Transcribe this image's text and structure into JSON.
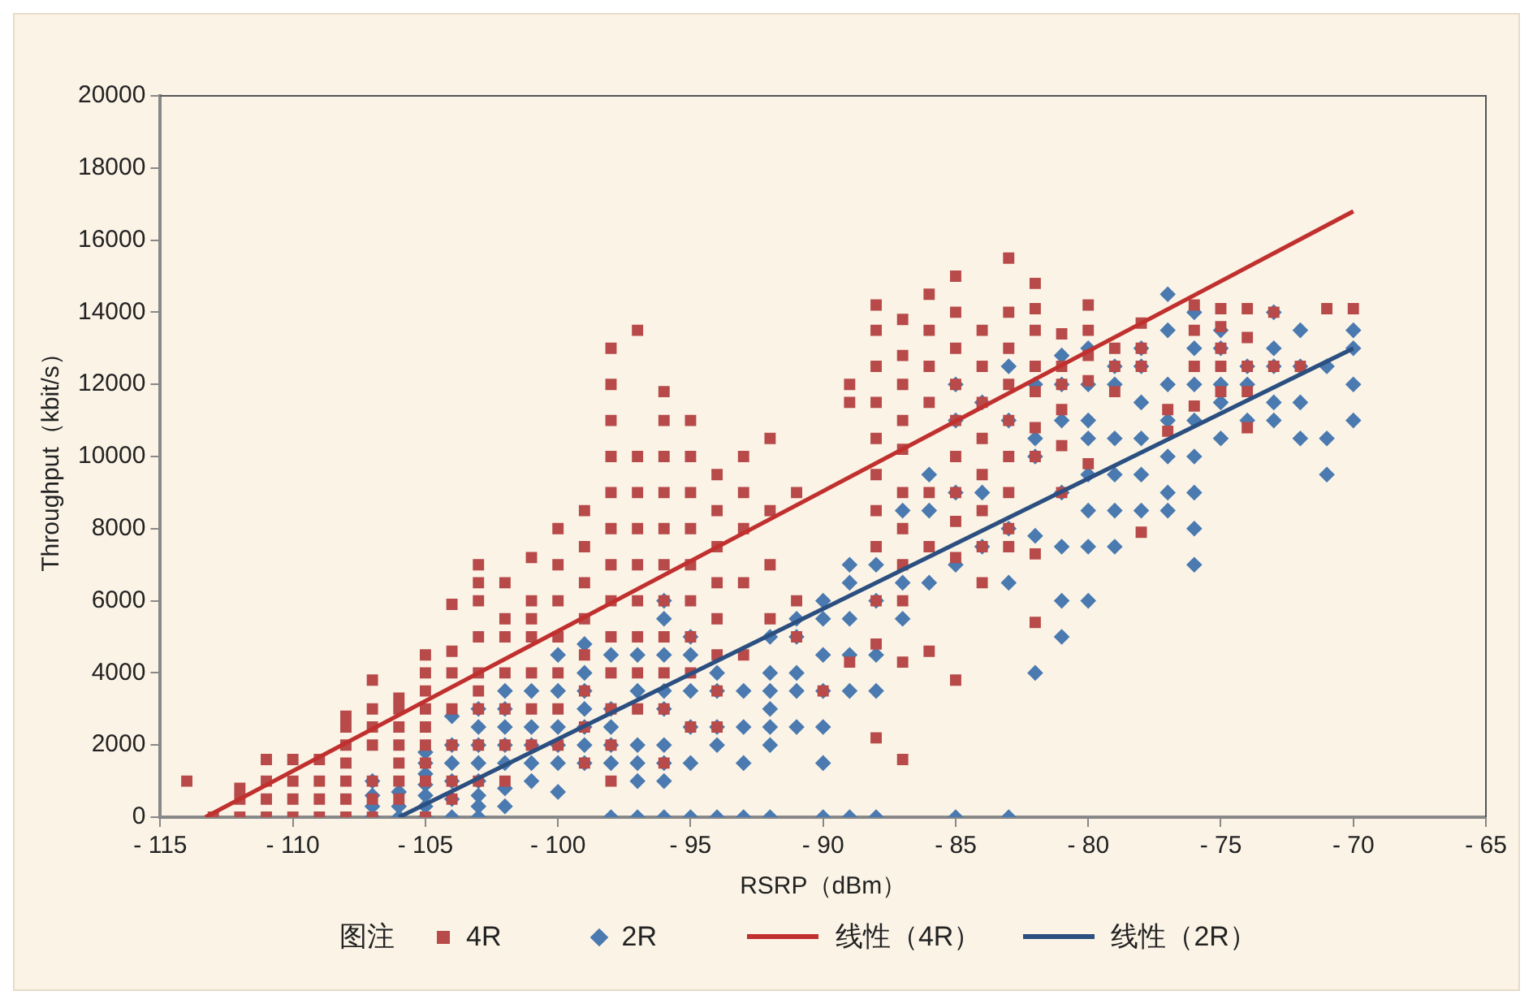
{
  "chart_data": {
    "type": "scatter",
    "xlabel": "RSRP（dBm）",
    "ylabel": "Throughput（kbit/s）",
    "legend_title": "图注",
    "legend": "bottom",
    "grid": false,
    "xlim": [
      -115,
      -65
    ],
    "xticks": [
      {
        "value": -115,
        "label": "- 115"
      },
      {
        "value": -110,
        "label": "- 110"
      },
      {
        "value": -105,
        "label": "- 105"
      },
      {
        "value": -100,
        "label": "- 100"
      },
      {
        "value": -95,
        "label": "- 95"
      },
      {
        "value": -90,
        "label": "- 90"
      },
      {
        "value": -85,
        "label": "- 85"
      },
      {
        "value": -80,
        "label": "- 80"
      },
      {
        "value": -75,
        "label": "- 75"
      },
      {
        "value": -70,
        "label": "- 70"
      },
      {
        "value": -65,
        "label": "- 65"
      }
    ],
    "ylim": [
      0,
      20000
    ],
    "yticks": [
      0,
      2000,
      4000,
      6000,
      8000,
      10000,
      12000,
      14000,
      16000,
      18000,
      20000
    ],
    "series": [
      {
        "name": "4R",
        "type": "scatter",
        "marker": "square",
        "color": "#b84a4a",
        "x": [
          -114,
          -113,
          -112,
          -112,
          -112,
          -111,
          -111,
          -111,
          -111,
          -110,
          -110,
          -110,
          -110,
          -109,
          -109,
          -109,
          -109,
          -108,
          -108,
          -108,
          -108,
          -108,
          -108,
          -108,
          -107,
          -107,
          -107,
          -107,
          -107,
          -107,
          -107,
          -106,
          -106,
          -106,
          -106,
          -106,
          -106,
          -106,
          -105,
          -105,
          -105,
          -105,
          -105,
          -105,
          -105,
          -105,
          -105,
          -104,
          -104,
          -104,
          -104,
          -104,
          -104,
          -104,
          -103,
          -103,
          -103,
          -103,
          -103,
          -103,
          -103,
          -103,
          -103,
          -102,
          -102,
          -102,
          -102,
          -102,
          -102,
          -102,
          -101,
          -101,
          -101,
          -101,
          -101,
          -101,
          -101,
          -100,
          -100,
          -100,
          -100,
          -100,
          -100,
          -100,
          -99,
          -99,
          -99,
          -99,
          -99,
          -99,
          -99,
          -99,
          -98,
          -98,
          -98,
          -98,
          -98,
          -98,
          -98,
          -98,
          -98,
          -98,
          -98,
          -98,
          -98,
          -97,
          -97,
          -97,
          -97,
          -97,
          -97,
          -97,
          -97,
          -97,
          -96,
          -96,
          -96,
          -96,
          -96,
          -96,
          -96,
          -96,
          -96,
          -96,
          -96,
          -95,
          -95,
          -95,
          -95,
          -95,
          -95,
          -95,
          -95,
          -95,
          -94,
          -94,
          -94,
          -94,
          -94,
          -94,
          -94,
          -94,
          -93,
          -93,
          -93,
          -93,
          -93,
          -92,
          -92,
          -92,
          -92,
          -91,
          -91,
          -91,
          -90,
          -89,
          -89,
          -89,
          -88,
          -88,
          -88,
          -88,
          -88,
          -88,
          -88,
          -88,
          -88,
          -88,
          -88,
          -87,
          -87,
          -87,
          -87,
          -87,
          -87,
          -87,
          -87,
          -87,
          -87,
          -87,
          -86,
          -86,
          -86,
          -86,
          -86,
          -86,
          -86,
          -85,
          -85,
          -85,
          -85,
          -85,
          -85,
          -85,
          -85,
          -85,
          -85,
          -84,
          -84,
          -84,
          -84,
          -84,
          -84,
          -84,
          -84,
          -83,
          -83,
          -83,
          -83,
          -83,
          -83,
          -83,
          -83,
          -83,
          -82,
          -82,
          -82,
          -82,
          -82,
          -82,
          -82,
          -82,
          -82,
          -81,
          -81,
          -81,
          -81,
          -81,
          -81,
          -80,
          -80,
          -80,
          -80,
          -80,
          -79,
          -79,
          -79,
          -78,
          -78,
          -78,
          -78,
          -77,
          -77,
          -76,
          -76,
          -76,
          -76,
          -75,
          -75,
          -75,
          -75,
          -75,
          -74,
          -74,
          -74,
          -74,
          -74,
          -73,
          -73,
          -72,
          -71,
          -70
        ],
        "values": [
          1000,
          0,
          0,
          500,
          800,
          0,
          500,
          1000,
          1600,
          0,
          500,
          1000,
          1600,
          0,
          500,
          1000,
          1600,
          0,
          500,
          1000,
          1500,
          2000,
          2500,
          2800,
          0,
          500,
          1000,
          2000,
          2500,
          3000,
          3800,
          500,
          1000,
          1500,
          2000,
          2500,
          3000,
          3300,
          0,
          1000,
          1500,
          2000,
          2500,
          3000,
          3500,
          4000,
          4500,
          500,
          1000,
          2000,
          3000,
          4000,
          4600,
          5900,
          1000,
          2000,
          3000,
          3500,
          4000,
          5000,
          6000,
          6500,
          7000,
          1000,
          2000,
          3000,
          4000,
          5000,
          5500,
          6500,
          2000,
          3000,
          4000,
          5000,
          5500,
          6000,
          7200,
          2000,
          3000,
          4000,
          5000,
          6000,
          7000,
          8000,
          1500,
          2500,
          3500,
          4500,
          5500,
          6500,
          7500,
          8500,
          1000,
          2000,
          3000,
          4000,
          5000,
          6000,
          7000,
          8000,
          9000,
          10000,
          11000,
          12000,
          13000,
          3000,
          4000,
          5000,
          6000,
          7000,
          8000,
          9000,
          10000,
          13500,
          1500,
          3000,
          4000,
          5000,
          6000,
          7000,
          8000,
          9000,
          10000,
          11000,
          11800,
          2500,
          4000,
          5000,
          6000,
          7000,
          8000,
          9000,
          10000,
          11000,
          2500,
          3500,
          4500,
          5500,
          6500,
          7500,
          8500,
          9500,
          4500,
          6500,
          8000,
          9000,
          10000,
          5500,
          7000,
          8500,
          10500,
          5000,
          6000,
          9000,
          3500,
          4300,
          11500,
          12000,
          2200,
          4800,
          6000,
          7500,
          8500,
          9500,
          10500,
          11500,
          12500,
          13500,
          14200,
          1600,
          4300,
          6000,
          7000,
          8000,
          9000,
          10200,
          11000,
          12000,
          12800,
          13800,
          4600,
          7500,
          9000,
          11500,
          12500,
          13500,
          14500,
          3800,
          7200,
          8200,
          9000,
          10000,
          11000,
          12000,
          13000,
          14000,
          15000,
          6500,
          7500,
          8500,
          9500,
          10500,
          11500,
          12500,
          13500,
          7500,
          8000,
          9000,
          10000,
          11000,
          12000,
          13000,
          14000,
          15500,
          5400,
          7300,
          10000,
          10800,
          11800,
          12500,
          13500,
          14100,
          14800,
          9000,
          10300,
          11300,
          12000,
          12500,
          13400,
          9800,
          12100,
          12800,
          13500,
          14200,
          11800,
          12500,
          13000,
          7900,
          12500,
          13000,
          13700,
          10700,
          11300,
          11400,
          12500,
          13500,
          14200,
          11800,
          12500,
          13000,
          13600,
          14100,
          10800,
          11800,
          12500,
          13300,
          14100,
          12500,
          14000,
          12500,
          14100,
          14100
        ]
      },
      {
        "name": "2R",
        "type": "scatter",
        "marker": "diamond",
        "color": "#4a7ab0",
        "x": [
          -107,
          -107,
          -107,
          -107,
          -106,
          -106,
          -106,
          -105,
          -105,
          -105,
          -105,
          -105,
          -105,
          -105,
          -104,
          -104,
          -104,
          -104,
          -104,
          -104,
          -103,
          -103,
          -103,
          -103,
          -103,
          -103,
          -103,
          -103,
          -102,
          -102,
          -102,
          -102,
          -102,
          -102,
          -102,
          -101,
          -101,
          -101,
          -101,
          -101,
          -100,
          -100,
          -100,
          -100,
          -100,
          -100,
          -99,
          -99,
          -99,
          -99,
          -99,
          -99,
          -99,
          -98,
          -98,
          -98,
          -98,
          -98,
          -98,
          -97,
          -97,
          -97,
          -97,
          -97,
          -97,
          -96,
          -96,
          -96,
          -96,
          -96,
          -96,
          -96,
          -96,
          -96,
          -95,
          -95,
          -95,
          -95,
          -95,
          -95,
          -94,
          -94,
          -94,
          -94,
          -94,
          -93,
          -93,
          -93,
          -93,
          -92,
          -92,
          -92,
          -92,
          -92,
          -92,
          -92,
          -91,
          -91,
          -91,
          -91,
          -91,
          -90,
          -90,
          -90,
          -90,
          -90,
          -90,
          -90,
          -89,
          -89,
          -89,
          -89,
          -89,
          -89,
          -88,
          -88,
          -88,
          -88,
          -88,
          -87,
          -87,
          -87,
          -86,
          -86,
          -86,
          -85,
          -85,
          -85,
          -85,
          -85,
          -84,
          -84,
          -84,
          -83,
          -83,
          -83,
          -83,
          -83,
          -82,
          -82,
          -82,
          -82,
          -82,
          -81,
          -81,
          -81,
          -81,
          -81,
          -81,
          -81,
          -80,
          -80,
          -80,
          -80,
          -80,
          -80,
          -80,
          -80,
          -79,
          -79,
          -79,
          -79,
          -79,
          -79,
          -78,
          -78,
          -78,
          -78,
          -78,
          -78,
          -77,
          -77,
          -77,
          -77,
          -77,
          -77,
          -77,
          -76,
          -76,
          -76,
          -76,
          -76,
          -76,
          -76,
          -76,
          -75,
          -75,
          -75,
          -75,
          -75,
          -74,
          -74,
          -74,
          -73,
          -73,
          -73,
          -73,
          -73,
          -72,
          -72,
          -72,
          -72,
          -71,
          -71,
          -71,
          -70,
          -70,
          -70,
          -70
        ],
        "values": [
          0,
          300,
          600,
          1000,
          0,
          300,
          700,
          0,
          300,
          600,
          900,
          1200,
          1500,
          1800,
          0,
          500,
          1000,
          1500,
          2000,
          2800,
          0,
          300,
          600,
          1000,
          1500,
          2000,
          2500,
          3000,
          300,
          800,
          1500,
          2000,
          2500,
          3000,
          3500,
          1000,
          1500,
          2000,
          2500,
          3500,
          700,
          1500,
          2000,
          2500,
          3500,
          4500,
          1500,
          2000,
          2500,
          3000,
          3500,
          4000,
          4800,
          0,
          1500,
          2000,
          2500,
          3000,
          4500,
          0,
          1000,
          1500,
          2000,
          3500,
          4500,
          0,
          1000,
          1500,
          2000,
          3000,
          3500,
          4500,
          5500,
          6000,
          0,
          1500,
          2500,
          3500,
          4500,
          5000,
          0,
          2000,
          2500,
          3500,
          4000,
          0,
          1500,
          2500,
          3500,
          0,
          2000,
          2500,
          3000,
          3500,
          4000,
          5000,
          2500,
          3500,
          4000,
          5000,
          5500,
          0,
          1500,
          2500,
          3500,
          4500,
          5500,
          6000,
          0,
          3500,
          4500,
          5500,
          6500,
          7000,
          0,
          3500,
          4500,
          6000,
          7000,
          5500,
          6500,
          8500,
          6500,
          8500,
          9500,
          0,
          7000,
          9000,
          11000,
          12000,
          7500,
          9000,
          11500,
          0,
          6500,
          8000,
          11000,
          12500,
          4000,
          7800,
          10000,
          10500,
          12000,
          5000,
          6000,
          7500,
          9000,
          11000,
          12000,
          12800,
          6000,
          7500,
          8500,
          9500,
          10500,
          11000,
          12000,
          13000,
          7500,
          8500,
          9500,
          10500,
          12000,
          12500,
          8500,
          9500,
          10500,
          11500,
          12500,
          13000,
          8500,
          9000,
          10000,
          11000,
          12000,
          13500,
          14500,
          7000,
          8000,
          9000,
          10000,
          11000,
          12000,
          13000,
          14000,
          10500,
          11500,
          12000,
          13000,
          13500,
          11000,
          12000,
          12500,
          11000,
          11500,
          12500,
          13000,
          14000,
          10500,
          11500,
          12500,
          13500,
          9500,
          10500,
          12500,
          11000,
          12000,
          13000,
          13500
        ]
      },
      {
        "name": "线性（4R）",
        "type": "line",
        "color": "#c0302e",
        "x": [
          -113.3,
          -70
        ],
        "values": [
          0,
          16800
        ]
      },
      {
        "name": "线性（2R）",
        "type": "line",
        "color": "#2b4f80",
        "x": [
          -106,
          -70
        ],
        "values": [
          0,
          13000
        ]
      }
    ]
  }
}
